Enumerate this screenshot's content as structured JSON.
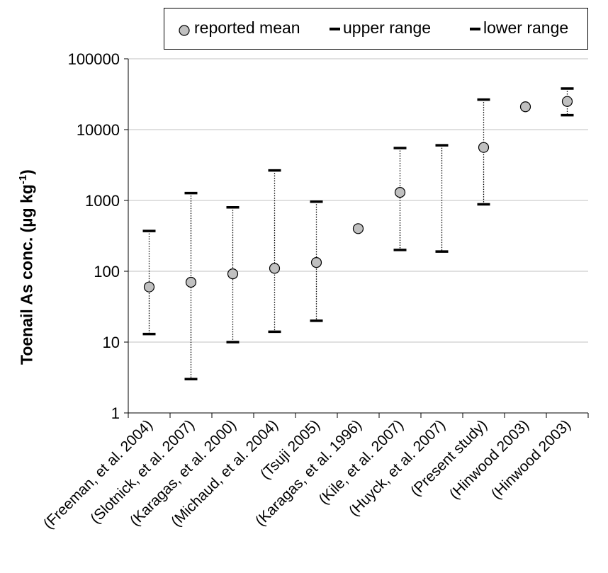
{
  "chart_data": {
    "type": "scatter",
    "yscale": "log",
    "ylim": [
      1,
      100000
    ],
    "yticks": [
      "1",
      "10",
      "100",
      "1000",
      "10000",
      "100000"
    ],
    "grid": "horizontal",
    "legend_position": "top",
    "ylabel": "Toenail As conc. (µg kg",
    "ylabel_sup": "-1",
    "ylabel_close": ")",
    "categories": [
      "(Freeman, et al. 2004)",
      "(Slotnick, et al. 2007)",
      "(Karagas, et al. 2000)",
      "(Michaud, et al. 2004)",
      "(Tsuji 2005)",
      "(Karagas, et al. 1996)",
      "(Kile, et al. 2007)",
      "(Huyck, et al. 2007)",
      "(Present study)",
      "(Hinwood 2003)",
      "(Hinwood 2003)"
    ],
    "series": [
      {
        "name": "reported mean",
        "values": [
          60,
          70,
          92,
          110,
          133,
          400,
          1300,
          null,
          5600,
          21000,
          25000
        ]
      },
      {
        "name": "upper range",
        "values": [
          370,
          1270,
          800,
          2650,
          960,
          null,
          5500,
          6000,
          26500,
          null,
          38000
        ]
      },
      {
        "name": "lower range",
        "values": [
          13,
          3,
          10,
          14,
          20,
          null,
          200,
          190,
          880,
          null,
          16000
        ]
      }
    ],
    "colors": {
      "mean_fill": "#c0c0c0",
      "mark": "#000000",
      "grid": "#c0c0c0"
    }
  }
}
